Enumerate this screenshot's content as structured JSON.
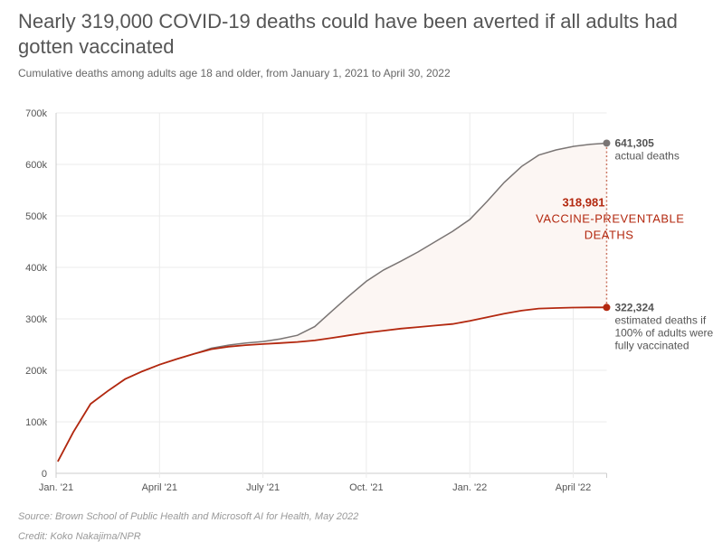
{
  "header": {
    "title": "Nearly 319,000 COVID-19 deaths could have been averted if all adults had gotten vaccinated",
    "subtitle": "Cumulative deaths among adults age 18 and older, from January 1, 2021 to April 30, 2022"
  },
  "footer": {
    "source": "Source: Brown School of Public Health and Microsoft AI for Health, May 2022",
    "credit": "Credit: Koko Nakajima/NPR"
  },
  "colors": {
    "actual": "#7a7574",
    "vaccinated": "#b3280f",
    "fill": "#fcf6f3",
    "annotation": "#b3280f"
  },
  "chart_data": {
    "type": "line",
    "title": "Nearly 319,000 COVID-19 deaths could have been averted if all adults had gotten vaccinated",
    "xlabel": "",
    "ylabel": "",
    "ylim": [
      0,
      700000
    ],
    "xlim_months": [
      0,
      15.97
    ],
    "y_ticks": [
      0,
      100000,
      200000,
      300000,
      400000,
      500000,
      600000,
      700000
    ],
    "y_tick_labels": [
      "0",
      "100k",
      "200k",
      "300k",
      "400k",
      "500k",
      "600k",
      "700k"
    ],
    "x_ticks": [
      0,
      3,
      6,
      9,
      12,
      15
    ],
    "x_tick_labels": [
      "Jan. '21",
      "April '21",
      "July '21",
      "Oct. '21",
      "Jan. '22",
      "April '22"
    ],
    "grid": true,
    "x_months": [
      0.05,
      0.5,
      1.0,
      1.5,
      2.0,
      2.5,
      3.0,
      3.5,
      4.0,
      4.5,
      5.0,
      5.5,
      6.0,
      6.5,
      7.0,
      7.5,
      8.0,
      8.5,
      9.0,
      9.5,
      10.0,
      10.5,
      11.0,
      11.5,
      12.0,
      12.5,
      13.0,
      13.5,
      14.0,
      14.5,
      15.0,
      15.5,
      15.97
    ],
    "series": [
      {
        "name": "actual deaths",
        "values": [
          23000,
          80000,
          135000,
          160000,
          183000,
          198000,
          211000,
          222000,
          232000,
          243000,
          249000,
          253000,
          256000,
          261000,
          268000,
          285000,
          315000,
          345000,
          373000,
          395000,
          412000,
          430000,
          450000,
          470000,
          493000,
          528000,
          565000,
          596000,
          618000,
          628000,
          635000,
          639000,
          641305
        ]
      },
      {
        "name": "estimated deaths if 100% of adults were fully vaccinated",
        "values": [
          23000,
          80000,
          135000,
          160000,
          183000,
          198000,
          211000,
          222000,
          232000,
          241000,
          246000,
          249000,
          251000,
          253000,
          255000,
          258000,
          263000,
          268000,
          273000,
          277000,
          281000,
          284000,
          287000,
          290000,
          296000,
          303000,
          310000,
          316000,
          320000,
          321000,
          322000,
          322200,
          322324
        ]
      }
    ],
    "annotations": {
      "actual_value": "641,305",
      "actual_label": "actual deaths",
      "vaccinated_value": "322,324",
      "vaccinated_label_lines": [
        "estimated deaths if",
        "100% of adults were",
        "fully vaccinated"
      ],
      "difference_value": "318,981",
      "difference_label_lines": [
        "VACCINE-PREVENTABLE",
        "DEATHS"
      ]
    }
  }
}
